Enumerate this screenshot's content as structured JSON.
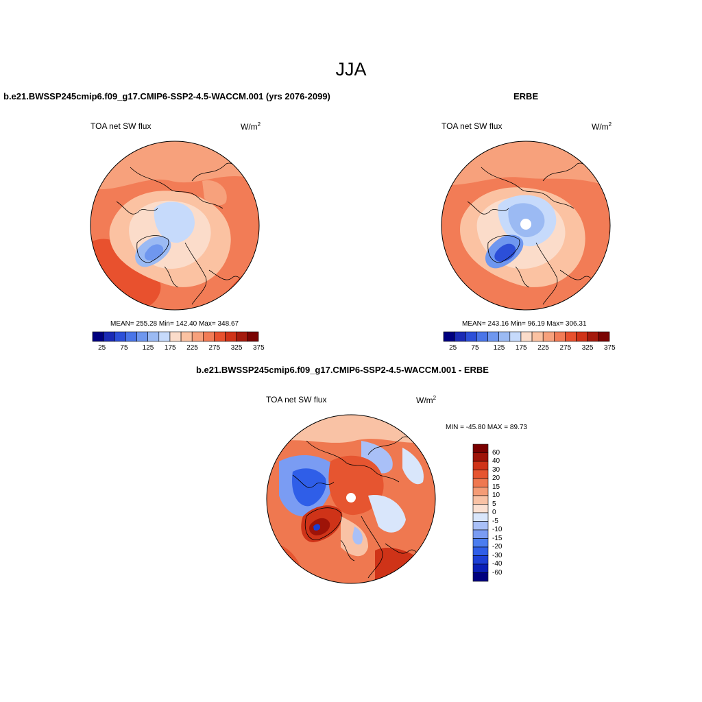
{
  "page": {
    "title": "JJA"
  },
  "colors": {
    "scale": [
      "#00007f",
      "#1a2ab5",
      "#2c4fd8",
      "#4a75e8",
      "#6f97ef",
      "#9bbaf3",
      "#c6dafb",
      "#fbdcca",
      "#fbc2a2",
      "#f7a17c",
      "#f27c56",
      "#e8512e",
      "#d03318",
      "#a51a0d",
      "#7a0403"
    ],
    "diff_scale": [
      "#00007f",
      "#0a1fb7",
      "#1c3fd6",
      "#2f5ee8",
      "#4b7df0",
      "#7a9cf3",
      "#a9c0f7",
      "#d9e6fb",
      "#fbe0d2",
      "#f9c2a5",
      "#f59c76",
      "#ef7850",
      "#e65530",
      "#cf3318",
      "#9e1308",
      "#7a0000"
    ],
    "land_line": "#000000",
    "ocean_fill": "#f6a47e"
  },
  "panels": [
    {
      "id": "model",
      "title": "b.e21.BWSSP245cmip6.f09_g17.CMIP6-SSP2-4.5-WACCM.001 (yrs 2076-2099)",
      "variable": "TOA net SW flux",
      "units": "W/m",
      "units_sup": "2",
      "stats": "MEAN= 255.28  Min= 142.40  Max= 348.67",
      "colorbar_labels": [
        "25",
        "75",
        "125",
        "175",
        "225",
        "275",
        "325",
        "375"
      ]
    },
    {
      "id": "obs",
      "title": "ERBE",
      "variable": "TOA net SW flux",
      "units": "W/m",
      "units_sup": "2",
      "stats": "MEAN= 243.16  Min=  96.19  Max= 306.31",
      "colorbar_labels": [
        "25",
        "75",
        "125",
        "175",
        "225",
        "275",
        "325",
        "375"
      ]
    },
    {
      "id": "diff",
      "title": "b.e21.BWSSP245cmip6.f09_g17.CMIP6-SSP2-4.5-WACCM.001 - ERBE",
      "variable": "TOA net SW flux",
      "units": "W/m",
      "units_sup": "2",
      "stats": "MIN = -45.80 MAX =  89.73",
      "colorbar_labels": [
        "60",
        "40",
        "30",
        "20",
        "15",
        "10",
        "5",
        "0",
        "-5",
        "-10",
        "-15",
        "-20",
        "-30",
        "-40",
        "-60"
      ]
    }
  ]
}
